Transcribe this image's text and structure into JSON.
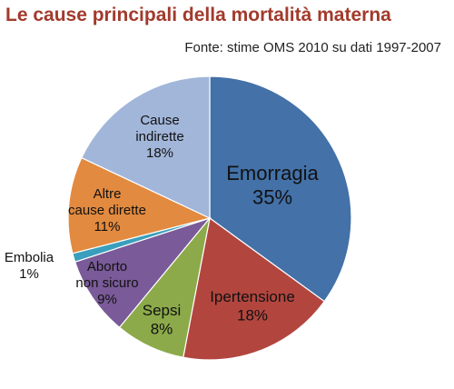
{
  "title": "Le cause principali della mortalità materna",
  "subtitle": "Fonte: stime OMS 2010 su dati 1997-2007",
  "chart_data": {
    "type": "pie",
    "title": "Le cause principali della mortalità materna",
    "subtitle": "Fonte: stime OMS 2010 su dati 1997-2007",
    "slices": [
      {
        "label_lines": [
          "Emorragia"
        ],
        "value": 35,
        "value_label": "35%",
        "color": "#4371a8"
      },
      {
        "label_lines": [
          "Ipertensione"
        ],
        "value": 18,
        "value_label": "18%",
        "color": "#b2463f"
      },
      {
        "label_lines": [
          "Sepsi"
        ],
        "value": 8,
        "value_label": "8%",
        "color": "#8caa4a"
      },
      {
        "label_lines": [
          "Aborto",
          "non sicuro"
        ],
        "value": 9,
        "value_label": "9%",
        "color": "#7a5a98"
      },
      {
        "label_lines": [
          "Embolia"
        ],
        "value": 1,
        "value_label": "1%",
        "color": "#3a9fbd"
      },
      {
        "label_lines": [
          "Altre",
          "cause dirette"
        ],
        "value": 11,
        "value_label": "11%",
        "color": "#e28a3f"
      },
      {
        "label_lines": [
          "Cause",
          "indirette"
        ],
        "value": 18,
        "value_label": "18%",
        "color": "#a2b6da"
      }
    ]
  }
}
